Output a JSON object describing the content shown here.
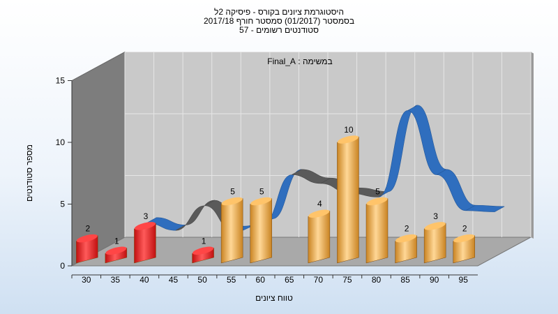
{
  "titles": {
    "line1": "היסטוגרמת ציונים בקורס - פיסיקה 2ל",
    "line2": "בסמסטר  (01/2017)  סמסטר חורף  2017/18",
    "line3": "סטודנטים רשומים - 57"
  },
  "chart_data": {
    "type": "bar",
    "annotation": "במשימה : Final_A",
    "xlabel": "טווח ציונים",
    "ylabel": "מספר סטודנטים",
    "categories": [
      "30",
      "35",
      "40",
      "45",
      "50",
      "55",
      "60",
      "65",
      "70",
      "75",
      "80",
      "85",
      "90",
      "95"
    ],
    "bars": [
      {
        "x": 30,
        "value": 2,
        "color": "#e02020"
      },
      {
        "x": 35,
        "value": 1,
        "color": "#e02020"
      },
      {
        "x": 40,
        "value": 3,
        "color": "#e02020"
      },
      {
        "x": 50,
        "value": 1,
        "color": "#e02020"
      },
      {
        "x": 55,
        "value": 5,
        "color": "#e8a640"
      },
      {
        "x": 60,
        "value": 5,
        "color": "#e8a640"
      },
      {
        "x": 70,
        "value": 4,
        "color": "#e8a640"
      },
      {
        "x": 75,
        "value": 10,
        "color": "#e8a640"
      },
      {
        "x": 80,
        "value": 5,
        "color": "#e8a640"
      },
      {
        "x": 85,
        "value": 2,
        "color": "#e8a640"
      },
      {
        "x": 90,
        "value": 3,
        "color": "#e8a640"
      },
      {
        "x": 95,
        "value": 2,
        "color": "#e8a640"
      }
    ],
    "curve": {
      "x": [
        35,
        40,
        45,
        50,
        55,
        60,
        65,
        70,
        75,
        80,
        85,
        90,
        95
      ],
      "values": [
        2.1,
        1.5,
        3.5,
        1.4,
        2.0,
        6.0,
        5.3,
        4.5,
        4.2,
        11.2,
        6.0,
        3.1,
        3.0
      ],
      "color_blue": "#2f6ebe",
      "color_gray": "#5a5a5a"
    },
    "yticks": [
      "0",
      "5",
      "10",
      "15"
    ],
    "ylim": [
      0,
      15
    ],
    "xlim": [
      27.5,
      97.5
    ],
    "grid": true,
    "colors": {
      "fail": "#e02020",
      "pass": "#e8a640",
      "back_wall": "#c9c9c9",
      "left_wall": "#7d7d7d",
      "floor": "#a9a9a9"
    }
  }
}
